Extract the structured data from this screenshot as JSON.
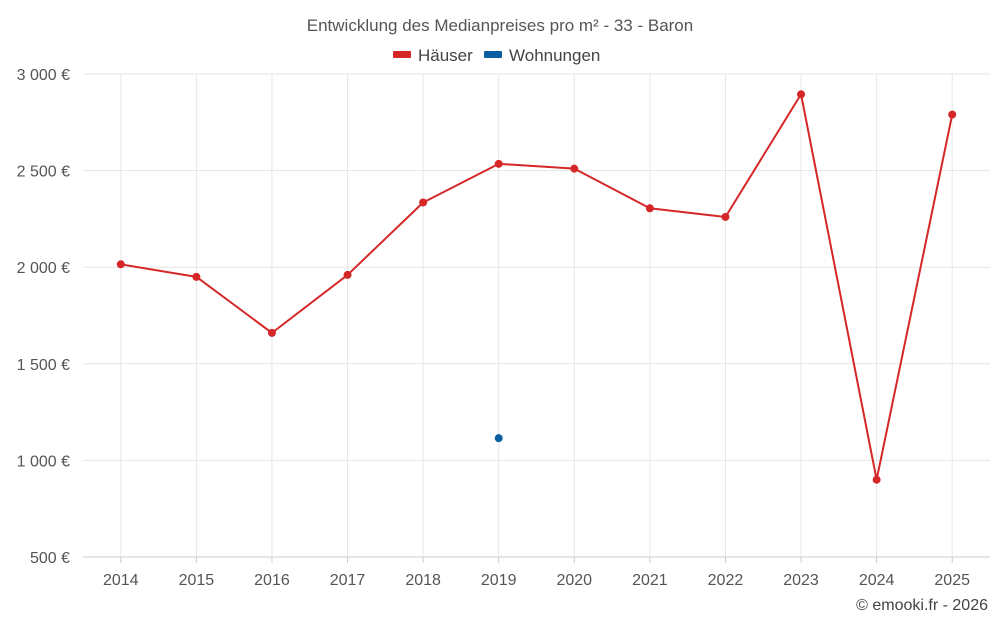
{
  "chart_data": {
    "type": "line",
    "title": "Entwicklung des Medianpreises pro m² - 33 - Baron",
    "categories": [
      "2014",
      "2015",
      "2016",
      "2017",
      "2018",
      "2019",
      "2020",
      "2021",
      "2022",
      "2023",
      "2024",
      "2025"
    ],
    "series": [
      {
        "name": "Häuser",
        "color": "#d62728",
        "values": [
          2015,
          1950,
          1660,
          1960,
          2335,
          2535,
          2510,
          2305,
          2260,
          2895,
          900,
          2790
        ]
      },
      {
        "name": "Wohnungen",
        "color": "#0a5fa0",
        "values": [
          null,
          null,
          null,
          null,
          null,
          1115,
          null,
          null,
          null,
          null,
          null,
          null
        ]
      }
    ],
    "ylim": [
      500,
      3000
    ],
    "yticks": [
      500,
      1000,
      1500,
      2000,
      2500,
      3000
    ],
    "ytick_labels": [
      "500 €",
      "1 000 €",
      "1 500 €",
      "2 000 €",
      "2 500 €",
      "3 000 €"
    ],
    "xlabel": "",
    "ylabel": "",
    "legend_position": "top-center",
    "grid": true
  },
  "credit": "© emooki.fr - 2026"
}
